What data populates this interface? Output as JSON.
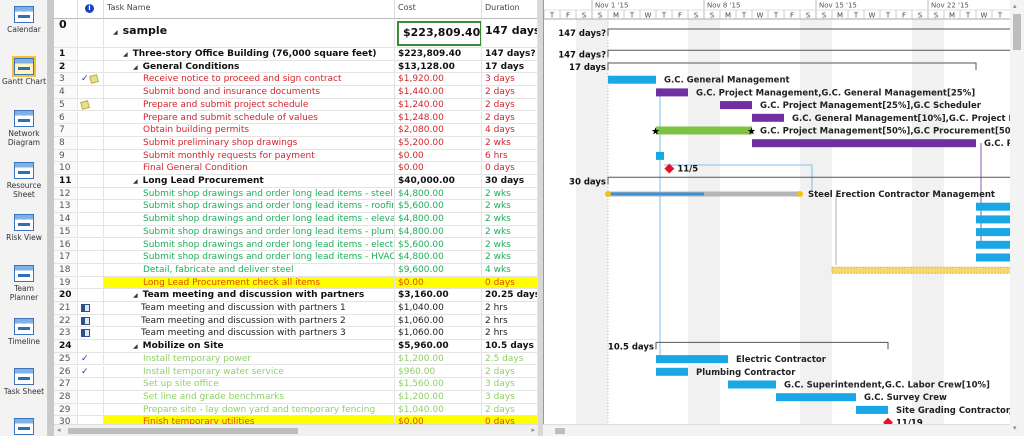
{
  "sidebar": {
    "views": [
      {
        "label": "Calendar",
        "icon": "calendar-icon"
      },
      {
        "label": "Gantt Chart",
        "icon": "gantt-chart-icon",
        "active": true
      },
      {
        "label": "Network Diagram",
        "icon": "network-diagram-icon"
      },
      {
        "label": "Resource Sheet",
        "icon": "resource-sheet-icon"
      },
      {
        "label": "Risk View",
        "icon": "risk-view-icon"
      },
      {
        "label": "Team Planner",
        "icon": "team-planner-icon"
      },
      {
        "label": "Timeline",
        "icon": "timeline-icon"
      },
      {
        "label": "Task Sheet",
        "icon": "task-sheet-icon"
      }
    ]
  },
  "table": {
    "headers": {
      "indicators": "i",
      "name": "Task Name",
      "cost": "Cost",
      "duration": "Duration"
    },
    "rows": [
      {
        "id": "0",
        "name": "sample",
        "cost": "$223,809.40",
        "duration": "147 days?",
        "level": 0,
        "style": "root",
        "summary": true
      },
      {
        "id": "1",
        "name": "Three-story Office Building (76,000 square feet)",
        "cost": "$223,809.40",
        "duration": "147 days?",
        "level": 1,
        "style": "summary",
        "summary": true
      },
      {
        "id": "2",
        "name": "General Conditions",
        "cost": "$13,128.00",
        "duration": "17 days",
        "level": 2,
        "style": "summary",
        "summary": true
      },
      {
        "id": "3",
        "name": "Receive notice to proceed and sign contract",
        "cost": "$1,920.00",
        "duration": "3 days",
        "level": 3,
        "style": "red",
        "indicators": [
          "check",
          "note"
        ]
      },
      {
        "id": "4",
        "name": "Submit bond and insurance documents",
        "cost": "$1,440.00",
        "duration": "2 days",
        "level": 3,
        "style": "red"
      },
      {
        "id": "5",
        "name": "Prepare and submit project schedule",
        "cost": "$1,240.00",
        "duration": "2 days",
        "level": 3,
        "style": "red",
        "indicators": [
          "note"
        ]
      },
      {
        "id": "6",
        "name": "Prepare and submit schedule of values",
        "cost": "$1,248.00",
        "duration": "2 days",
        "level": 3,
        "style": "red"
      },
      {
        "id": "7",
        "name": "Obtain building permits",
        "cost": "$2,080.00",
        "duration": "4 days",
        "level": 3,
        "style": "red"
      },
      {
        "id": "8",
        "name": "Submit preliminary shop drawings",
        "cost": "$5,200.00",
        "duration": "2 wks",
        "level": 3,
        "style": "red"
      },
      {
        "id": "9",
        "name": "Submit monthly requests for payment",
        "cost": "$0.00",
        "duration": "6 hrs",
        "level": 3,
        "style": "red"
      },
      {
        "id": "10",
        "name": "Final General Condition",
        "cost": "$0.00",
        "duration": "0 days",
        "level": 3,
        "style": "red"
      },
      {
        "id": "11",
        "name": "Long Lead Procurement",
        "cost": "$40,000.00",
        "duration": "30 days",
        "level": 2,
        "style": "summary",
        "summary": true
      },
      {
        "id": "12",
        "name": "Submit shop drawings and order long lead items - steel",
        "cost": "$4,800.00",
        "duration": "2 wks",
        "level": 3,
        "style": "green"
      },
      {
        "id": "13",
        "name": "Submit shop drawings and order long lead items - roofing",
        "cost": "$5,600.00",
        "duration": "2 wks",
        "level": 3,
        "style": "green"
      },
      {
        "id": "14",
        "name": "Submit shop drawings and order long lead items - elevator",
        "cost": "$4,800.00",
        "duration": "2 wks",
        "level": 3,
        "style": "green"
      },
      {
        "id": "15",
        "name": "Submit shop drawings and order long lead items - plumbing",
        "cost": "$4,800.00",
        "duration": "2 wks",
        "level": 3,
        "style": "green"
      },
      {
        "id": "16",
        "name": "Submit shop drawings and order long lead items - electric",
        "cost": "$5,600.00",
        "duration": "2 wks",
        "level": 3,
        "style": "green"
      },
      {
        "id": "17",
        "name": "Submit shop drawings and order long lead items - HVAC",
        "cost": "$4,800.00",
        "duration": "2 wks",
        "level": 3,
        "style": "green"
      },
      {
        "id": "18",
        "name": "Detail, fabricate and deliver steel",
        "cost": "$9,600.00",
        "duration": "4 wks",
        "level": 3,
        "style": "green"
      },
      {
        "id": "19",
        "name": "Long Lead Procurement check all items",
        "cost": "$0.00",
        "duration": "0 days",
        "level": 3,
        "style": "highlight"
      },
      {
        "id": "20",
        "name": "Team meeting and discussion with partners",
        "cost": "$3,160.00",
        "duration": "20.25 days",
        "level": 2,
        "style": "summary",
        "summary": true
      },
      {
        "id": "21",
        "name": "Team meeting and discussion with partners 1",
        "cost": "$1,040.00",
        "duration": "2 hrs",
        "level": 2.5,
        "style": "normal",
        "indicators": [
          "calendar"
        ]
      },
      {
        "id": "22",
        "name": "Team meeting and discussion with partners 2",
        "cost": "$1,060.00",
        "duration": "2 hrs",
        "level": 2.5,
        "style": "normal",
        "indicators": [
          "calendar"
        ]
      },
      {
        "id": "23",
        "name": "Team meeting and discussion with partners 3",
        "cost": "$1,060.00",
        "duration": "2 hrs",
        "level": 2.5,
        "style": "normal",
        "indicators": [
          "calendar"
        ]
      },
      {
        "id": "24",
        "name": "Mobilize on Site",
        "cost": "$5,960.00",
        "duration": "10.5 days",
        "level": 2,
        "style": "summary",
        "summary": true
      },
      {
        "id": "25",
        "name": "Install temporary power",
        "cost": "$1,200.00",
        "duration": "2.5 days",
        "level": 3,
        "style": "lightgreen",
        "indicators": [
          "check"
        ]
      },
      {
        "id": "26",
        "name": "Install temporary water service",
        "cost": "$960.00",
        "duration": "2 days",
        "level": 3,
        "style": "lightgreen",
        "indicators": [
          "check"
        ]
      },
      {
        "id": "27",
        "name": "Set up site office",
        "cost": "$1,560.00",
        "duration": "3 days",
        "level": 3,
        "style": "lightgreen"
      },
      {
        "id": "28",
        "name": "Set line and grade benchmarks",
        "cost": "$1,200.00",
        "duration": "3 days",
        "level": 3,
        "style": "lightgreen"
      },
      {
        "id": "29",
        "name": "Prepare site - lay down yard and temporary fencing",
        "cost": "$1,040.00",
        "duration": "2 days",
        "level": 3,
        "style": "lightgreen"
      },
      {
        "id": "30",
        "name": "Finish temporary utilities",
        "cost": "$0.00",
        "duration": "0 days",
        "level": 3,
        "style": "highlight"
      }
    ]
  },
  "gantt": {
    "weeks": [
      "Nov 1 '15",
      "Nov 8 '15",
      "Nov 15 '15",
      "Nov 22 '15"
    ],
    "day_letters": [
      "T",
      "F",
      "S",
      "S",
      "M",
      "T",
      "W",
      "T",
      "F",
      "S",
      "S",
      "M",
      "T",
      "W",
      "T",
      "F",
      "S",
      "S",
      "M",
      "T",
      "W",
      "T",
      "F",
      "S",
      "S",
      "M",
      "T",
      "W",
      "T"
    ],
    "colors": {
      "task": "#19a7e6",
      "critical": "#7030a0",
      "green": "#7dc242",
      "summary": "#555555",
      "milestone": "#e81123",
      "deadline_fill": "#f7d774",
      "baseline_gray": "#b5b5b5"
    },
    "bars": [
      {
        "row": 0,
        "type": "summary",
        "start": "2015-11-02",
        "finish": "2016-01-10",
        "left_label": "147 days?"
      },
      {
        "row": 1,
        "type": "summary",
        "start": "2015-11-02",
        "finish": "2016-01-10",
        "left_label": "147 days?"
      },
      {
        "row": 2,
        "type": "summary",
        "start": "2015-11-02",
        "finish": "2015-11-25",
        "left_label": "17 days"
      },
      {
        "row": 3,
        "type": "task",
        "start": "2015-11-02",
        "finish": "2015-11-05",
        "label": "G.C. General Management",
        "progress": 1
      },
      {
        "row": 4,
        "type": "critical",
        "start": "2015-11-05",
        "finish": "2015-11-07",
        "label": "G.C. Project Management,G.C. General Management[25%]"
      },
      {
        "row": 5,
        "type": "critical",
        "start": "2015-11-09",
        "finish": "2015-11-11",
        "label": "G.C. Project Management[25%],G.C Scheduler"
      },
      {
        "row": 6,
        "type": "critical",
        "start": "2015-11-11",
        "finish": "2015-11-13",
        "label": "G.C. General Management[10%],G.C. Project Management"
      },
      {
        "row": 7,
        "type": "green",
        "start": "2015-11-05",
        "finish": "2015-11-11",
        "label": "G.C. Project Management[50%],G.C Procurement[50%]",
        "stars": true
      },
      {
        "row": 8,
        "type": "critical",
        "start": "2015-11-11",
        "finish": "2015-11-25",
        "label": "G.C. Pr"
      },
      {
        "row": 9,
        "type": "task",
        "start": "2015-11-05",
        "finish": "2015-11-05T12:00"
      },
      {
        "row": 10,
        "type": "milestone",
        "start": "2015-11-05T20:00",
        "label": "11/5"
      },
      {
        "row": 11,
        "type": "summary",
        "start": "2015-11-02",
        "finish": "2016-01-10",
        "left_label": "30 days"
      },
      {
        "row": 12,
        "type": "gray",
        "start": "2015-11-02",
        "finish": "2015-11-14",
        "label": "Steel Erection Contractor Management",
        "progress": 0.5
      },
      {
        "row": 13,
        "type": "task",
        "start": "2015-11-25",
        "finish": "2015-12-08"
      },
      {
        "row": 14,
        "type": "task",
        "start": "2015-11-25",
        "finish": "2015-12-08"
      },
      {
        "row": 15,
        "type": "task",
        "start": "2015-11-25",
        "finish": "2015-12-08"
      },
      {
        "row": 16,
        "type": "task",
        "start": "2015-11-25",
        "finish": "2015-12-08"
      },
      {
        "row": 17,
        "type": "task",
        "start": "2015-11-25",
        "finish": "2015-12-08"
      },
      {
        "row": 18,
        "type": "deadline",
        "start": "2015-11-16",
        "finish": "2015-12-20"
      },
      {
        "row": 24,
        "type": "summary",
        "start": "2015-11-05",
        "finish": "2015-11-19T12:00",
        "left_label": "10.5 days"
      },
      {
        "row": 25,
        "type": "task",
        "start": "2015-11-05",
        "finish": "2015-11-09T12:00",
        "label": "Electric Contractor"
      },
      {
        "row": 26,
        "type": "task",
        "start": "2015-11-05",
        "finish": "2015-11-07",
        "label": "Plumbing Contractor"
      },
      {
        "row": 27,
        "type": "task",
        "start": "2015-11-09T12:00",
        "finish": "2015-11-12T12:00",
        "label": "G.C. Superintendent,G.C. Labor Crew[10%]"
      },
      {
        "row": 28,
        "type": "task",
        "start": "2015-11-12T12:00",
        "finish": "2015-11-17T12:00",
        "label": "G.C. Survey Crew"
      },
      {
        "row": 29,
        "type": "task",
        "start": "2015-11-17T12:00",
        "finish": "2015-11-19T12:00",
        "label": "Site Grading Contractor,G.C."
      },
      {
        "row": 30,
        "type": "milestone",
        "start": "2015-11-19T12:00",
        "label": "11/19"
      }
    ]
  }
}
